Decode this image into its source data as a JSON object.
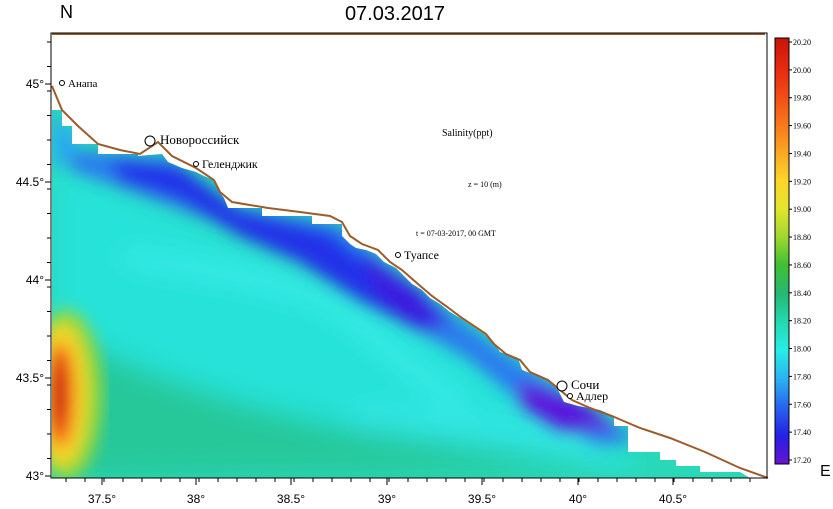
{
  "header": {
    "title": "07.03.2017",
    "north_label": "N",
    "east_label": "E"
  },
  "info": {
    "variable": "Salinity(ppt)",
    "depth": "z = 10 (m)",
    "time": "t = 07-03-2017,  00 GMT"
  },
  "axes": {
    "lat_ticks": [
      "45°",
      "44.5°",
      "44°",
      "43.5°",
      "43°"
    ],
    "lon_ticks": [
      "37.5°",
      "38°",
      "38.5°",
      "39°",
      "39.5°",
      "40°",
      "40.5°"
    ]
  },
  "cities": [
    {
      "name": "Анапа",
      "marker": "small"
    },
    {
      "name": "Новороссийск",
      "marker": "large"
    },
    {
      "name": "Геленджик",
      "marker": "small"
    },
    {
      "name": "Туапсе",
      "marker": "small"
    },
    {
      "name": "Сочи",
      "marker": "large"
    },
    {
      "name": "Адлер",
      "marker": "small"
    }
  ],
  "colorbar": {
    "labels": [
      "20.20",
      "20.00",
      "19.80",
      "19.60",
      "19.40",
      "19.20",
      "19.00",
      "18.80",
      "18.60",
      "18.40",
      "18.20",
      "18.00",
      "17.80",
      "17.60",
      "17.40",
      "17.20"
    ],
    "colors": [
      "#c8140a",
      "#e6280f",
      "#f24a14",
      "#f7761a",
      "#fba521",
      "#fcd52a",
      "#e4e62c",
      "#9fd830",
      "#3fc032",
      "#26b874",
      "#23d9b0",
      "#26eee6",
      "#2ab2f2",
      "#2864ee",
      "#2420e6",
      "#6614d2"
    ]
  },
  "colors": {
    "coast_line": "#9c5c2a",
    "land": "#ffffff",
    "frame": "#000000"
  }
}
